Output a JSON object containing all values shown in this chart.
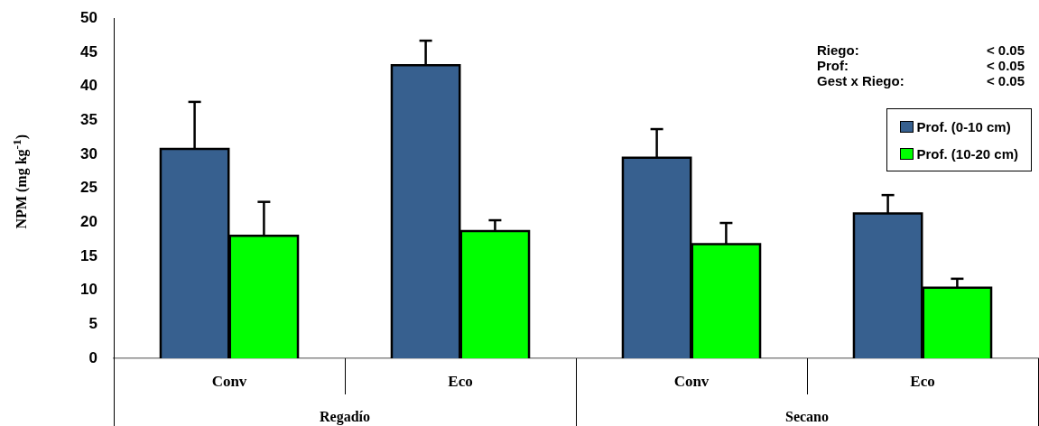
{
  "chart_data": {
    "type": "bar",
    "ylabel": "NPM (mg kg$^{-1}$)",
    "categories": [
      "Conv",
      "Eco",
      "Conv",
      "Eco"
    ],
    "series": [
      {
        "name": "Prof. (0-10 cm)",
        "color": "#37608f",
        "values": [
          30.8,
          43.1,
          29.5,
          21.3
        ],
        "errors": [
          [
            30.8,
            37.7
          ],
          [
            43.1,
            46.7
          ],
          [
            29.5,
            33.7
          ],
          [
            21.3,
            24.0
          ]
        ]
      },
      {
        "name": "Prof. (10-20 cm)",
        "color": "#00ff00",
        "values": [
          18.0,
          18.7,
          16.8,
          10.4
        ],
        "errors": [
          [
            18.0,
            23.0
          ],
          [
            18.7,
            20.3
          ],
          [
            16.8,
            19.9
          ],
          [
            10.4,
            11.7
          ]
        ]
      }
    ],
    "ylim": [
      0,
      50
    ],
    "yticks": [
      0,
      5,
      10,
      15,
      20,
      25,
      30,
      35,
      40,
      45,
      50
    ],
    "grid": false,
    "legend": "top right",
    "annotations": [
      "Regadío",
      "Secano",
      "Riego: < 0.05",
      "Prof: < 0.05",
      "Gest x Riego: < 0.05"
    ]
  }
}
